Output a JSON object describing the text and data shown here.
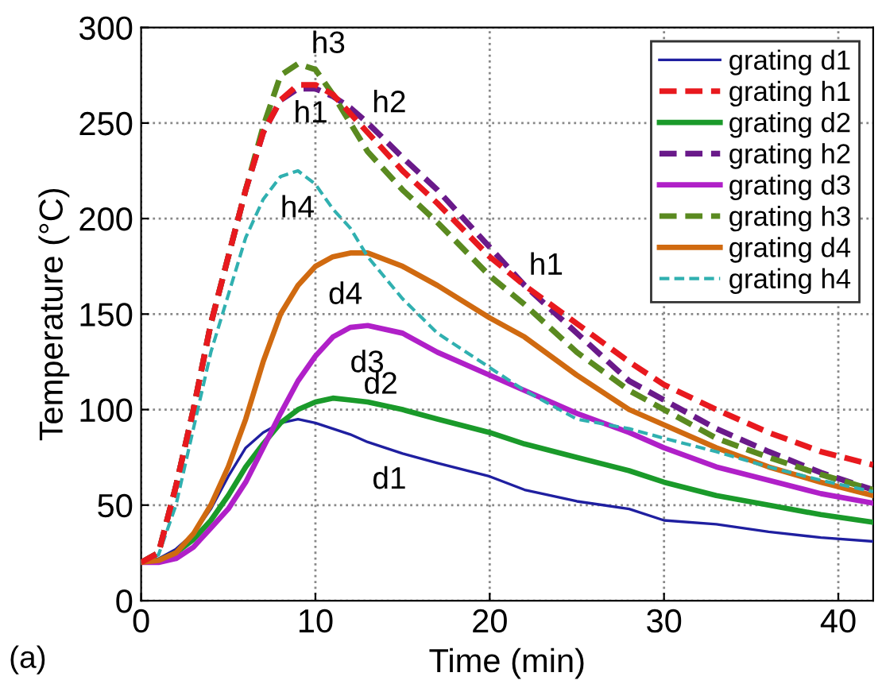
{
  "chart_data": {
    "type": "line",
    "xlabel": "Time (min)",
    "ylabel": "Temperature (°C)",
    "xlim": [
      0,
      42
    ],
    "ylim": [
      0,
      300
    ],
    "xticks": [
      0,
      10,
      20,
      30,
      40
    ],
    "yticks": [
      0,
      50,
      100,
      150,
      200,
      250,
      300
    ],
    "grid": true,
    "legend": "top right",
    "x": [
      0,
      1,
      2,
      3,
      4,
      5,
      6,
      7,
      8,
      9,
      10,
      11,
      12,
      13,
      15,
      17,
      20,
      22,
      25,
      28,
      30,
      33,
      36,
      39,
      42
    ],
    "series": [
      {
        "name": "grating d1",
        "color": "#1f1fa0",
        "line_style": "solid",
        "values": [
          20,
          22,
          27,
          35,
          48,
          65,
          80,
          88,
          93,
          95,
          93,
          90,
          87,
          83,
          77,
          72,
          65,
          58,
          52,
          48,
          42,
          40,
          36,
          33,
          31
        ]
      },
      {
        "name": "grating h1",
        "color": "#e8191e",
        "line_style": "dashed",
        "values": [
          20,
          25,
          60,
          100,
          145,
          180,
          215,
          245,
          262,
          270,
          270,
          265,
          255,
          245,
          225,
          208,
          180,
          165,
          145,
          125,
          113,
          100,
          88,
          78,
          71
        ]
      },
      {
        "name": "grating d2",
        "color": "#1a9a2a",
        "line_style": "solid",
        "values": [
          20,
          21,
          25,
          32,
          42,
          55,
          70,
          82,
          93,
          100,
          104,
          106,
          105,
          104,
          100,
          95,
          88,
          82,
          75,
          68,
          62,
          55,
          50,
          45,
          41
        ]
      },
      {
        "name": "grating h2",
        "color": "#6a1a8a",
        "line_style": "dashed",
        "values": [
          20,
          25,
          60,
          100,
          145,
          180,
          215,
          245,
          262,
          268,
          268,
          264,
          258,
          250,
          232,
          215,
          185,
          165,
          140,
          115,
          105,
          90,
          78,
          67,
          58
        ]
      },
      {
        "name": "grating d3",
        "color": "#b020c8",
        "line_style": "solid",
        "values": [
          20,
          20,
          22,
          28,
          38,
          48,
          62,
          80,
          98,
          115,
          128,
          138,
          143,
          144,
          140,
          130,
          118,
          110,
          98,
          88,
          80,
          70,
          63,
          56,
          51
        ]
      },
      {
        "name": "grating h3",
        "color": "#5a8a20",
        "line_style": "dashed",
        "values": [
          20,
          25,
          60,
          100,
          145,
          180,
          215,
          248,
          275,
          281,
          278,
          265,
          250,
          235,
          215,
          198,
          170,
          155,
          130,
          110,
          100,
          85,
          75,
          66,
          58
        ]
      },
      {
        "name": "grating d4",
        "color": "#d06a10",
        "line_style": "solid",
        "values": [
          20,
          21,
          25,
          35,
          50,
          70,
          95,
          125,
          150,
          165,
          175,
          180,
          182,
          182,
          175,
          165,
          148,
          138,
          118,
          100,
          92,
          80,
          70,
          62,
          55
        ]
      },
      {
        "name": "grating h4",
        "color": "#30b0b0",
        "line_style": "dashed",
        "values": [
          20,
          24,
          50,
          90,
          130,
          160,
          190,
          210,
          222,
          225,
          218,
          205,
          195,
          180,
          158,
          140,
          122,
          110,
          95,
          90,
          85,
          78,
          70,
          63,
          57
        ]
      }
    ],
    "annotations": [
      {
        "text": "h3",
        "x": 9,
        "y": 281
      },
      {
        "text": "h1",
        "x": 9,
        "y": 270
      },
      {
        "text": "h2",
        "x": 13,
        "y": 250
      },
      {
        "text": "h4",
        "x": 9,
        "y": 225
      },
      {
        "text": "d4",
        "x": 12,
        "y": 182
      },
      {
        "text": "d3",
        "x": 13,
        "y": 144
      },
      {
        "text": "d2",
        "x": 12,
        "y": 105
      },
      {
        "text": "d1",
        "x": 13,
        "y": 83
      },
      {
        "text": "h1",
        "x": 22,
        "y": 165
      },
      "(a)"
    ]
  }
}
